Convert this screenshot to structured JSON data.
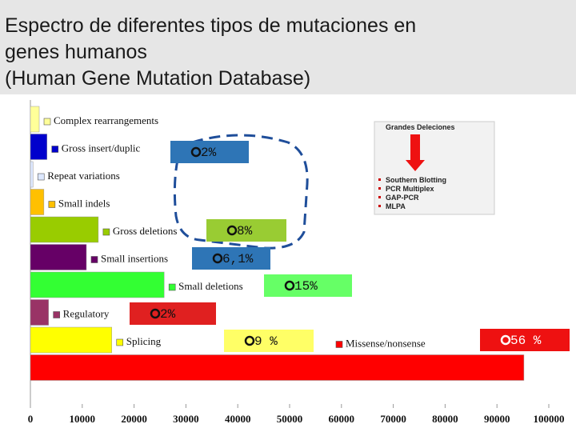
{
  "chart_data": {
    "type": "bar",
    "orientation": "horizontal",
    "title_lines": [
      "Espectro de diferentes tipos de mutaciones en",
      "genes humanos",
      "(Human Gene Mutation Database)"
    ],
    "categories": [
      "Complex rearrangements",
      "Gross insert/duplic",
      "Repeat variations",
      "Small indels",
      "Gross deletions",
      "Small insertions",
      "Small deletions",
      "Regulatory",
      "Splicing",
      "Missense/nonsense"
    ],
    "values": [
      1700,
      3200,
      500,
      2600,
      13100,
      10800,
      25800,
      3500,
      15700,
      95200
    ],
    "colors": [
      "#ffff99",
      "#0000cc",
      "#dde8ff",
      "#ffc000",
      "#99cc00",
      "#660066",
      "#33ff33",
      "#993366",
      "#ffff00",
      "#ff0000"
    ],
    "xlim": [
      0,
      100000
    ],
    "xticks": [
      0,
      10000,
      20000,
      30000,
      40000,
      50000,
      60000,
      70000,
      80000,
      90000,
      100000
    ],
    "grid": false,
    "annotations": [
      "2%",
      "8%",
      "6,1%",
      "15%",
      "2%",
      "9 %",
      "56 %"
    ],
    "inset": {
      "title": "Grandes Deleciones",
      "items": [
        "Southern Blotting",
        "PCR Multiplex",
        "GAP-PCR",
        "MLPA"
      ]
    }
  }
}
